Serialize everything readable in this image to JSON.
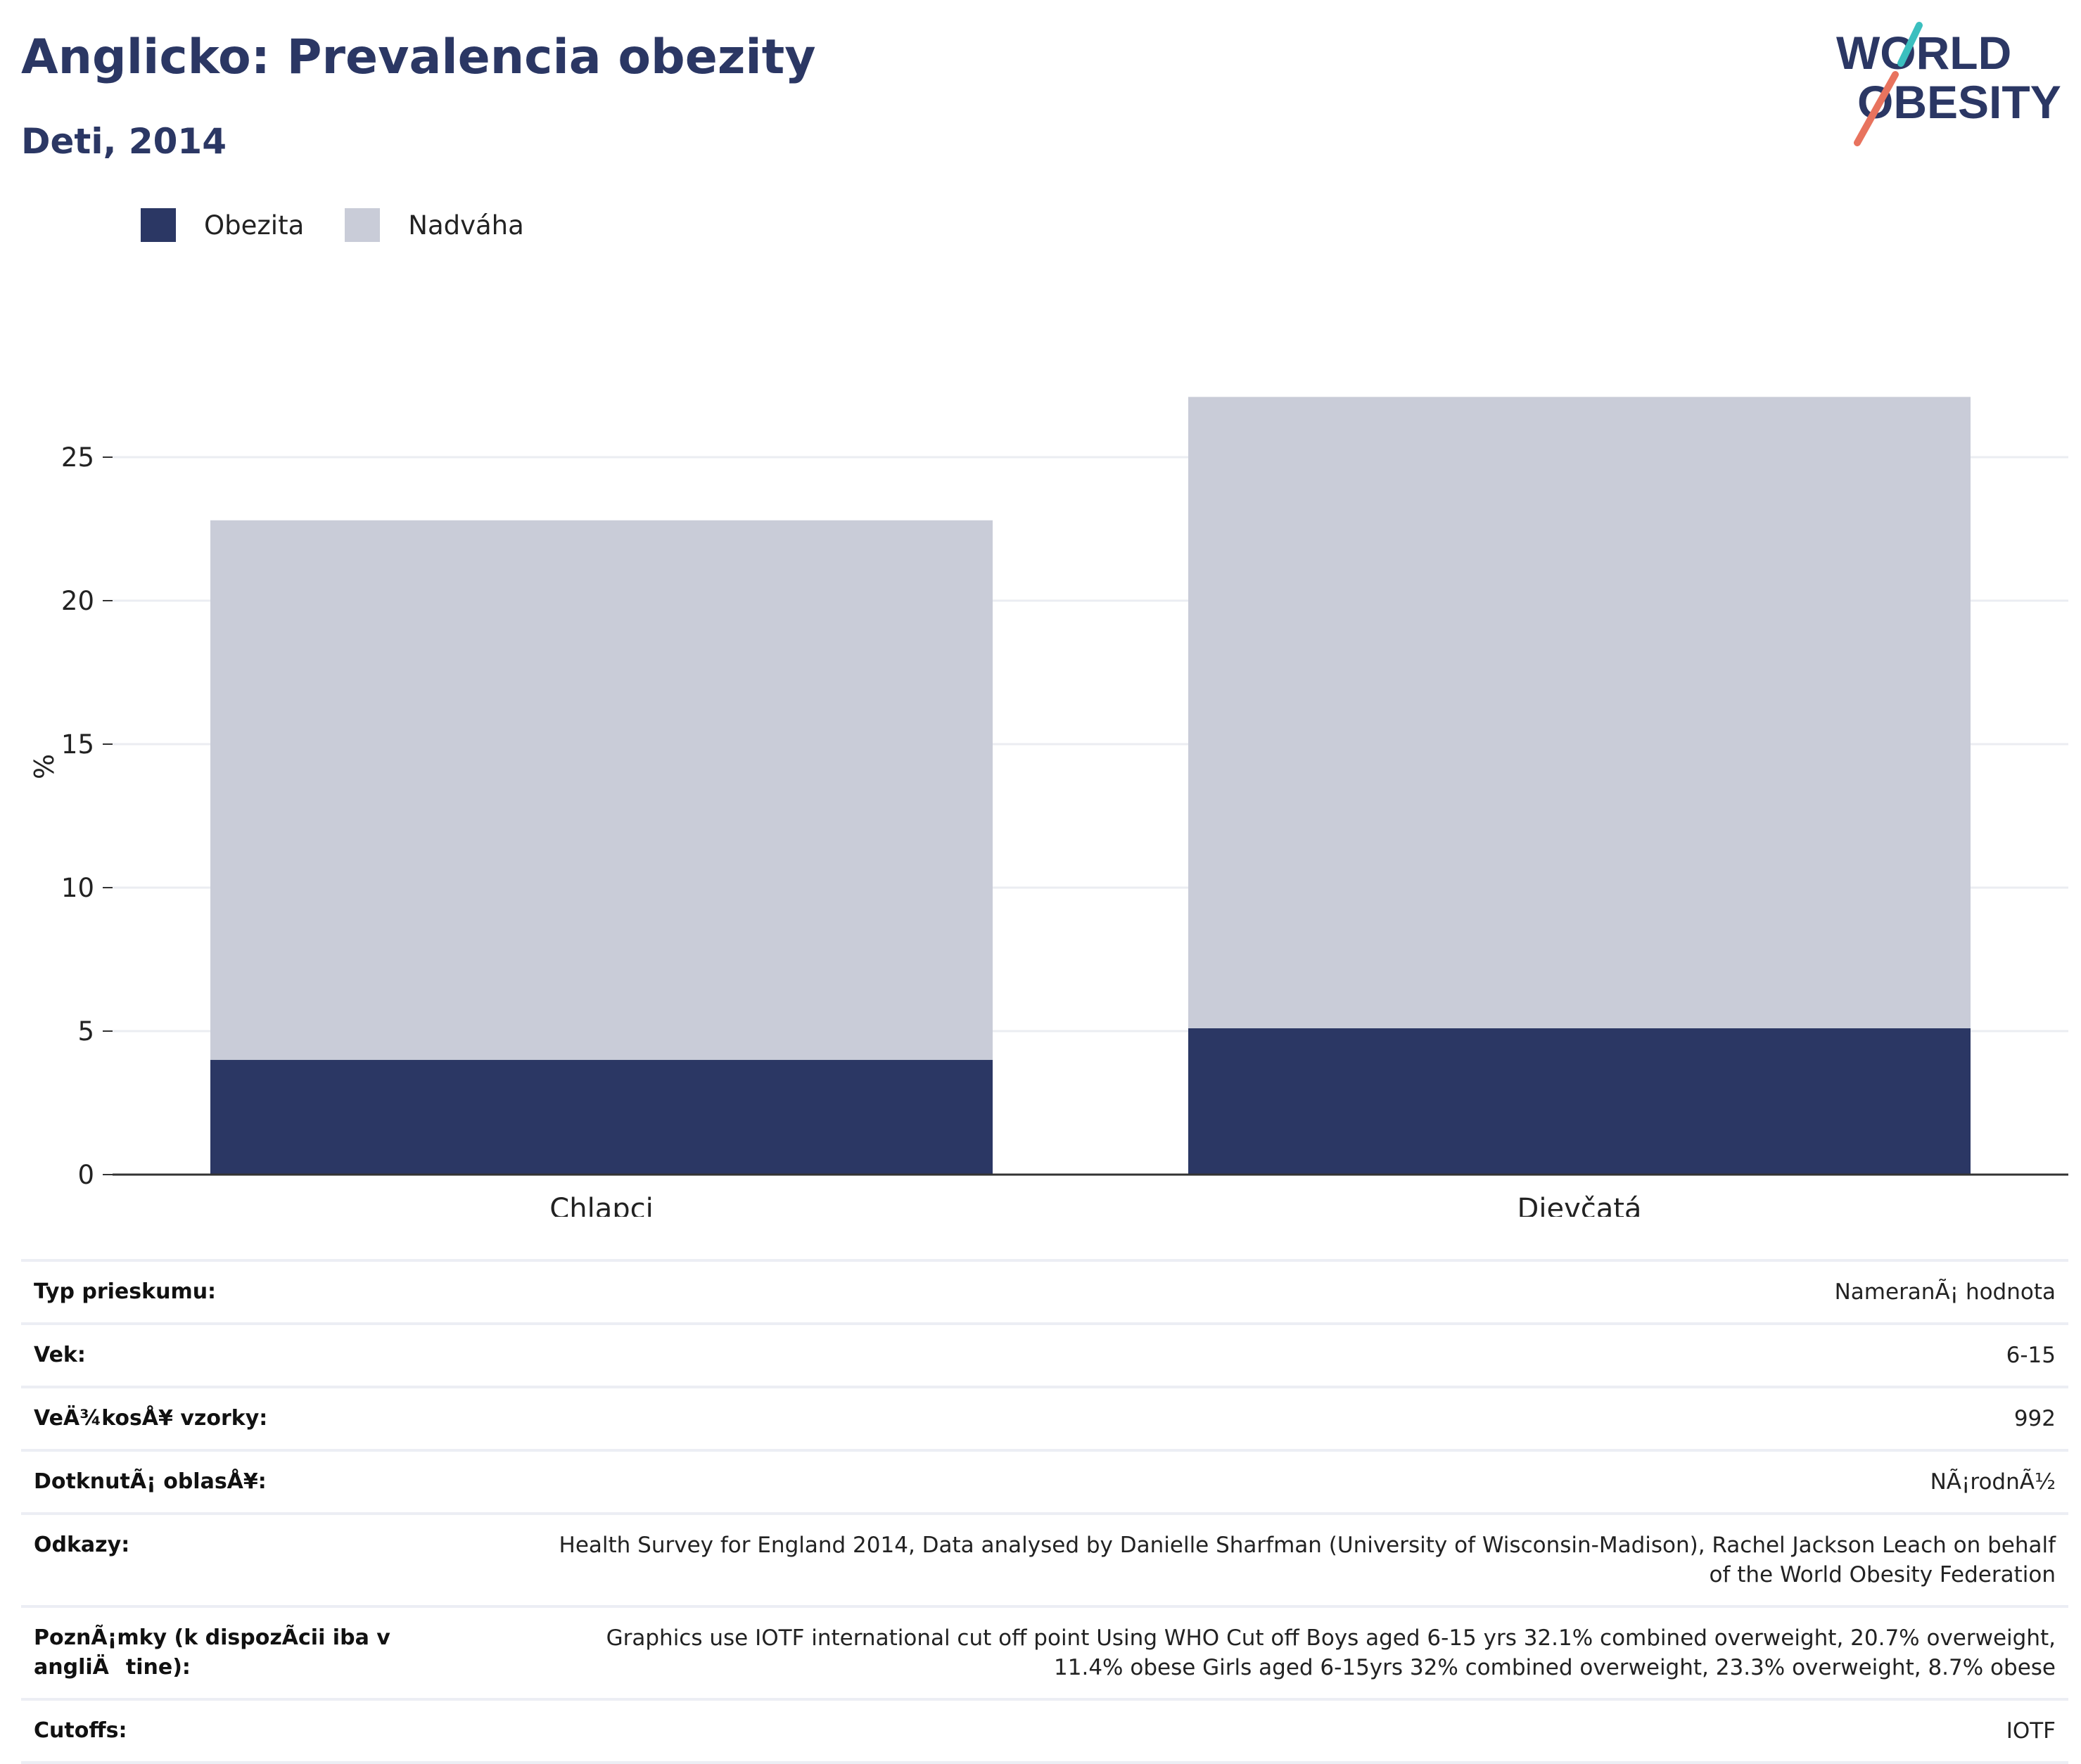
{
  "header": {
    "title": "Anglicko: Prevalencia obezity",
    "subtitle": "Deti, 2014"
  },
  "logo": {
    "line1": "WORLD",
    "line2": "OBESITY"
  },
  "colors": {
    "obezita": "#2b3764",
    "nadvaha": "#c9ccd8",
    "title": "#2b3764",
    "grid": "#ebedf2",
    "logo_teal": "#3bbfbf",
    "logo_coral": "#e8735e"
  },
  "chart_data": {
    "type": "bar",
    "stacked": true,
    "categories": [
      "Chlapci",
      "Dievčatá"
    ],
    "series": [
      {
        "name": "Obezita",
        "values": [
          4.0,
          5.1
        ]
      },
      {
        "name": "Nadváha",
        "values": [
          18.8,
          22.0
        ]
      }
    ],
    "ylabel": "%",
    "ylim": [
      0,
      27.5
    ],
    "yticks": [
      "0",
      "5",
      "10",
      "15",
      "20",
      "25"
    ],
    "grid": true,
    "legend_position": "top-left"
  },
  "info": [
    {
      "label": "Typ prieskumu:",
      "value": "NameranÃ¡ hodnota"
    },
    {
      "label": "Vek:",
      "value": "6-15"
    },
    {
      "label": "VeÄ¾kosÅ¥ vzorky:",
      "value": "992"
    },
    {
      "label": "DotknutÃ¡ oblasÅ¥:",
      "value": "NÃ¡rodnÃ½"
    },
    {
      "label": "Odkazy:",
      "value": "Health Survey for England 2014, Data analysed by Danielle Sharfman (University of Wisconsin-Madison), Rachel Jackson Leach on behalf of the World Obesity Federation"
    },
    {
      "label": "PoznÃ¡mky (k dispozÃcii iba v angliÄtine):",
      "value": "Graphics use IOTF international cut off point Using WHO Cut off Boys aged 6-15 yrs 32.1% combined overweight, 20.7% overweight, 11.4% obese Girls aged 6-15yrs 32% combined overweight, 23.3% overweight, 8.7% obese"
    },
    {
      "label": "Cutoffs:",
      "value": "IOTF"
    }
  ]
}
